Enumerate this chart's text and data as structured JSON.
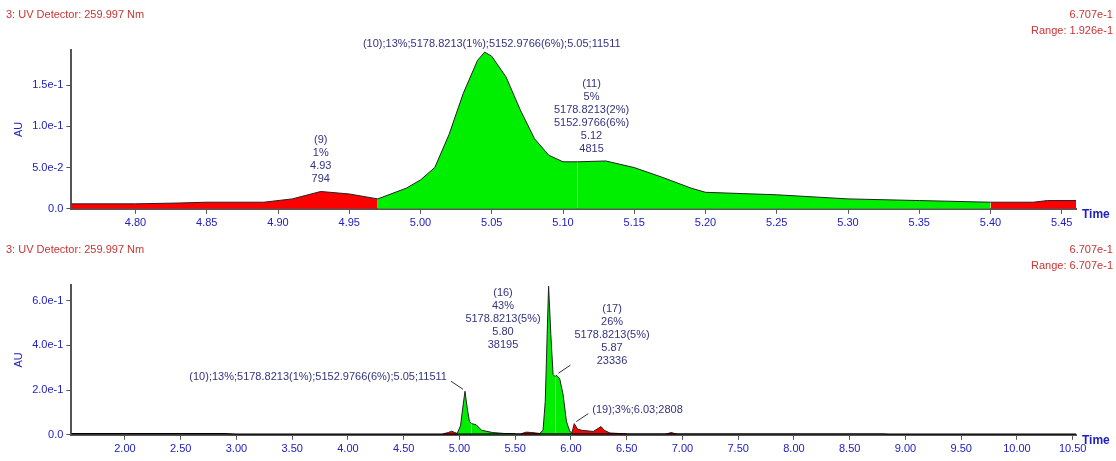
{
  "chart_data": [
    {
      "type": "area",
      "title": "3: UV Detector: 259.997 Nm",
      "xlabel": "Time",
      "ylabel": "AU",
      "xlim": [
        4.755,
        5.46
      ],
      "ylim": [
        0,
        0.1926
      ],
      "xticks": [
        {
          "value": 4.8,
          "label": "4.80"
        },
        {
          "value": 4.85,
          "label": "4.85"
        },
        {
          "value": 4.9,
          "label": "4.90"
        },
        {
          "value": 4.95,
          "label": "4.95"
        },
        {
          "value": 5.0,
          "label": "5.00"
        },
        {
          "value": 5.05,
          "label": "5.05"
        },
        {
          "value": 5.1,
          "label": "5.10"
        },
        {
          "value": 5.15,
          "label": "5.15"
        },
        {
          "value": 5.2,
          "label": "5.20"
        },
        {
          "value": 5.25,
          "label": "5.25"
        },
        {
          "value": 5.3,
          "label": "5.30"
        },
        {
          "value": 5.35,
          "label": "5.35"
        },
        {
          "value": 5.4,
          "label": "5.40"
        },
        {
          "value": 5.45,
          "label": "5.45"
        }
      ],
      "yticks": [
        {
          "value": 0,
          "label": "0.0"
        },
        {
          "value": 0.05,
          "label": "5.0e-2"
        },
        {
          "value": 0.1,
          "label": "1.0e-1"
        },
        {
          "value": 0.15,
          "label": "1.5e-1"
        }
      ],
      "grid": false,
      "series": [
        {
          "type": "area",
          "color": "#ff0000",
          "x": [
            4.755,
            4.8,
            4.83,
            4.85,
            4.89,
            4.91,
            4.93,
            4.95,
            4.97
          ],
          "values": [
            0.006,
            0.006,
            0.007,
            0.008,
            0.008,
            0.012,
            0.021,
            0.018,
            0.012
          ]
        },
        {
          "type": "area",
          "color": "#00ee00",
          "x": [
            4.97,
            4.99,
            5.0,
            5.01,
            5.02,
            5.03,
            5.04,
            5.045,
            5.05,
            5.06,
            5.07,
            5.08,
            5.09,
            5.1,
            5.11
          ],
          "values": [
            0.012,
            0.025,
            0.035,
            0.05,
            0.09,
            0.14,
            0.18,
            0.19,
            0.185,
            0.16,
            0.12,
            0.085,
            0.065,
            0.057,
            0.057
          ]
        },
        {
          "type": "area",
          "color": "#00ee00",
          "x": [
            5.11,
            5.13,
            5.15,
            5.17,
            5.19,
            5.2,
            5.25,
            5.3,
            5.35,
            5.4
          ],
          "values": [
            0.057,
            0.058,
            0.05,
            0.038,
            0.025,
            0.02,
            0.017,
            0.012,
            0.01,
            0.008
          ]
        },
        {
          "type": "area",
          "color": "#ff0000",
          "x": [
            5.4,
            5.43,
            5.44,
            5.46
          ],
          "values": [
            0.008,
            0.008,
            0.01,
            0.01
          ]
        }
      ],
      "annotations": [
        "6.707e-1",
        "Range: 1.926e-1",
        {
          "text": "(9)\n1%\n4.93\n794",
          "x": 4.93,
          "y": 0.021
        },
        {
          "text": "(10);13%;5178.8213(1%);5152.9766(6%);5.05;11511",
          "x": 5.05,
          "y": 0.185
        },
        {
          "text": "(11)\n5%\n5178.8213(2%)\n5152.9766(6%)\n5.12\n4815",
          "x": 5.12,
          "y": 0.058
        }
      ]
    },
    {
      "type": "area",
      "title": "3: UV Detector: 259.997 Nm",
      "xlabel": "Time",
      "ylabel": "AU",
      "xlim": [
        1.52,
        10.53
      ],
      "ylim": [
        0,
        0.6707
      ],
      "xticks": [
        {
          "value": 2.0,
          "label": "2.00"
        },
        {
          "value": 2.5,
          "label": "2.50"
        },
        {
          "value": 3.0,
          "label": "3.00"
        },
        {
          "value": 3.5,
          "label": "3.50"
        },
        {
          "value": 4.0,
          "label": "4.00"
        },
        {
          "value": 4.5,
          "label": "4.50"
        },
        {
          "value": 5.0,
          "label": "5.00"
        },
        {
          "value": 5.5,
          "label": "5.50"
        },
        {
          "value": 6.0,
          "label": "6.00"
        },
        {
          "value": 6.5,
          "label": "6.50"
        },
        {
          "value": 7.0,
          "label": "7.00"
        },
        {
          "value": 7.5,
          "label": "7.50"
        },
        {
          "value": 8.0,
          "label": "8.00"
        },
        {
          "value": 8.5,
          "label": "8.50"
        },
        {
          "value": 9.0,
          "label": "9.00"
        },
        {
          "value": 9.5,
          "label": "9.50"
        },
        {
          "value": 10.0,
          "label": "10.00"
        },
        {
          "value": 10.5,
          "label": "10.50"
        }
      ],
      "yticks": [
        {
          "value": 0,
          "label": "0.0"
        },
        {
          "value": 0.2,
          "label": "2.0e-1"
        },
        {
          "value": 0.4,
          "label": "4.0e-1"
        },
        {
          "value": 0.6,
          "label": "6.0e-1"
        }
      ],
      "grid": false,
      "series": [
        {
          "type": "line",
          "color": "#000000",
          "x": [
            1.52,
            2.9,
            3.0,
            4.8,
            6.5,
            8.8,
            8.85,
            10.53
          ],
          "values": [
            0.005,
            0.005,
            0.003,
            0.003,
            0.004,
            0.004,
            0.002,
            0.002
          ]
        },
        {
          "type": "area",
          "color": "#ff0000",
          "x": [
            4.85,
            4.9,
            4.93,
            4.96,
            4.98
          ],
          "values": [
            0.004,
            0.01,
            0.016,
            0.01,
            0.006
          ]
        },
        {
          "type": "area",
          "color": "#00ee00",
          "x": [
            4.98,
            5.01,
            5.03,
            5.05,
            5.07,
            5.09,
            5.11
          ],
          "values": [
            0.006,
            0.04,
            0.12,
            0.195,
            0.12,
            0.06,
            0.05
          ]
        },
        {
          "type": "area",
          "color": "#00ee00",
          "x": [
            5.11,
            5.15,
            5.2,
            5.3,
            5.4,
            5.5
          ],
          "values": [
            0.05,
            0.045,
            0.02,
            0.01,
            0.006,
            0.005
          ]
        },
        {
          "type": "area",
          "color": "#ff0000",
          "x": [
            5.55,
            5.6,
            5.65,
            5.72
          ],
          "values": [
            0.004,
            0.012,
            0.01,
            0.006
          ]
        },
        {
          "type": "area",
          "color": "#00ee00",
          "x": [
            5.72,
            5.75,
            5.77,
            5.79,
            5.8,
            5.82,
            5.84,
            5.86
          ],
          "values": [
            0.006,
            0.02,
            0.15,
            0.5,
            0.665,
            0.45,
            0.27,
            0.26
          ]
        },
        {
          "type": "area",
          "color": "#00ee00",
          "x": [
            5.86,
            5.87,
            5.9,
            5.93,
            5.96,
            5.99,
            6.01
          ],
          "values": [
            0.26,
            0.267,
            0.25,
            0.18,
            0.06,
            0.015,
            0.01
          ]
        },
        {
          "type": "area",
          "color": "#ff0000",
          "x": [
            6.01,
            6.03,
            6.06,
            6.1,
            6.2,
            6.25,
            6.27,
            6.3,
            6.35,
            6.5
          ],
          "values": [
            0.01,
            0.05,
            0.025,
            0.02,
            0.015,
            0.03,
            0.037,
            0.02,
            0.008,
            0.004
          ]
        },
        {
          "type": "area",
          "color": "#ff0000",
          "x": [
            6.85,
            6.9,
            6.95
          ],
          "values": [
            0.003,
            0.01,
            0.003
          ]
        }
      ],
      "annotations": [
        "6.707e-1",
        "Range: 6.707e-1",
        {
          "text": "(10);13%;5178.8213(1%);5152.9766(6%);5.05;11511",
          "x": 5.05,
          "y": 0.195
        },
        {
          "text": "(16)\n43%\n5178.8213(5%)\n5.80\n38195",
          "x": 5.8,
          "y": 0.665
        },
        {
          "text": "(17)\n26%\n5178.8213(5%)\n5.87\n23336",
          "x": 5.87,
          "y": 0.267
        },
        {
          "text": "(19);3%;6.03;2808",
          "x": 6.03,
          "y": 0.05
        }
      ]
    }
  ]
}
